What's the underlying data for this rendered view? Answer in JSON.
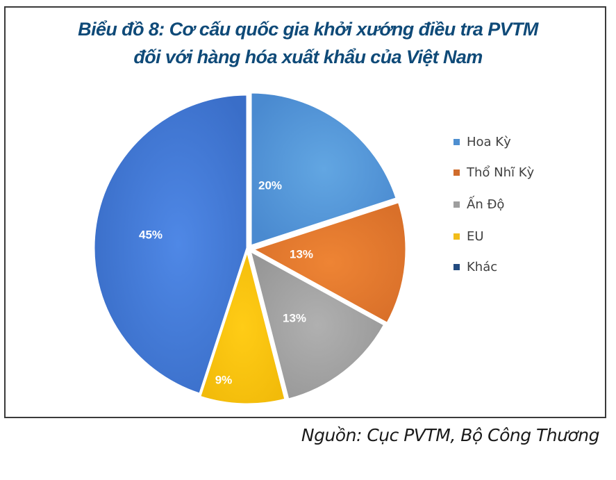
{
  "title": {
    "line1": "Biểu đồ 8: Cơ cấu quốc gia khởi xướng điều tra PVTM",
    "line2": "đối với hàng hóa xuất khẩu của Việt Nam"
  },
  "source": "Nguồn: Cục PVTM, Bộ Công Thương",
  "legend": {
    "items": [
      {
        "label": "Hoa Kỳ",
        "color": "#4e8fd0"
      },
      {
        "label": "Thổ Nhĩ Kỳ",
        "color": "#d06c2c"
      },
      {
        "label": "Ấn Độ",
        "color": "#9e9e9e"
      },
      {
        "label": "EU",
        "color": "#f2bd1a"
      },
      {
        "label": "Khác",
        "color": "#234b80"
      }
    ]
  },
  "colors": {
    "title": "#0f4a78",
    "Hoa Kỳ": "#5b9fdc",
    "Thổ Nhĩ Kỳ": "#e67a2e",
    "Ấn Độ": "#a6a6a6",
    "EU": "#fcc511",
    "Khác": "#4a7fdc"
  },
  "chart_data": {
    "type": "pie",
    "title": "Biểu đồ 8: Cơ cấu quốc gia khởi xướng điều tra PVTM đối với hàng hóa xuất khẩu của Việt Nam",
    "categories": [
      "Hoa Kỳ",
      "Thổ Nhĩ Kỳ",
      "Ấn Độ",
      "EU",
      "Khác"
    ],
    "values": [
      20,
      13,
      13,
      9,
      45
    ],
    "labels": [
      "20%",
      "13%",
      "13%",
      "9%",
      "45%"
    ],
    "unit": "%",
    "start_angle": "12 o'clock, clockwise",
    "legend_position": "right",
    "source": "Nguồn: Cục PVTM, Bộ Công Thương"
  }
}
